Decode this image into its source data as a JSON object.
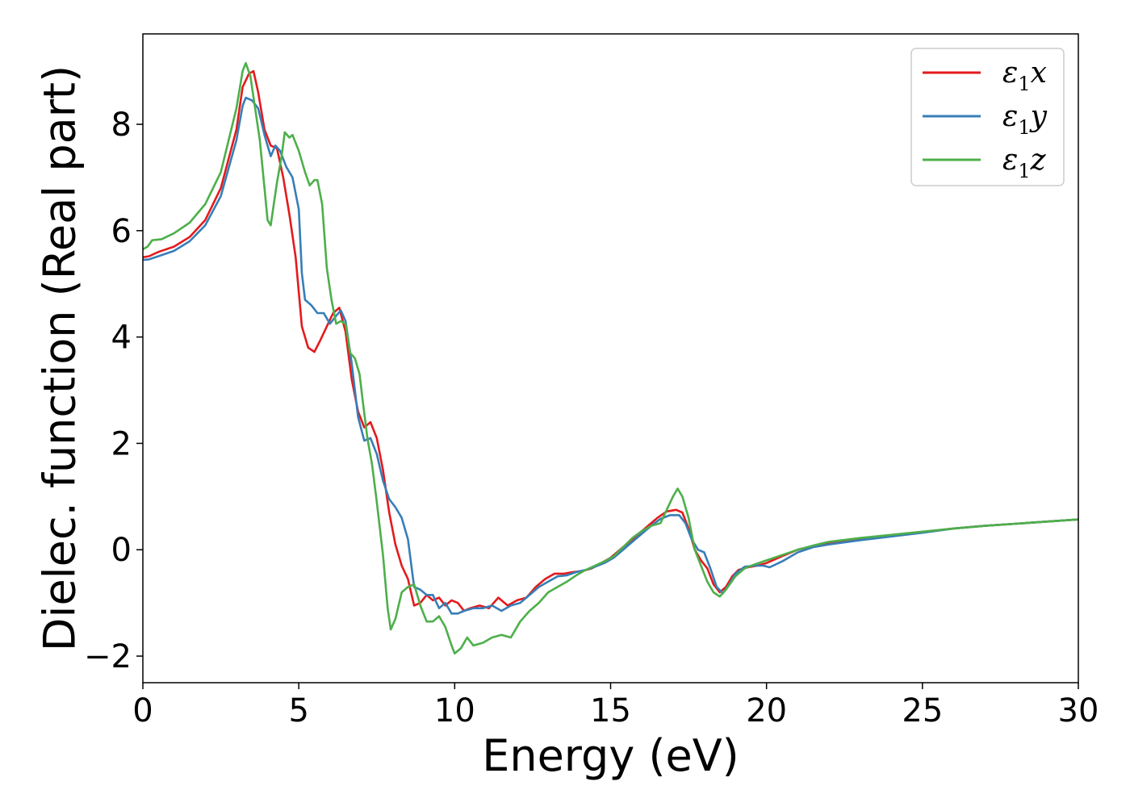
{
  "chart_data": {
    "type": "line",
    "xlabel": "Energy (eV)",
    "ylabel": "Dielec. function (Real part)",
    "xlim": [
      0,
      30
    ],
    "ylim": [
      -2.5,
      9.7
    ],
    "xticks": [
      0,
      5,
      10,
      15,
      20,
      25,
      30
    ],
    "xtick_labels": [
      "0",
      "5",
      "10",
      "15",
      "20",
      "25",
      "30"
    ],
    "yticks": [
      -2,
      0,
      2,
      4,
      6,
      8
    ],
    "ytick_labels": [
      "−2",
      "0",
      "2",
      "4",
      "6",
      "8"
    ],
    "grid": false,
    "legend_position": "top-right",
    "series": [
      {
        "name": "ε1x",
        "legend_base": "ε",
        "legend_sub": "1",
        "legend_tail": "x",
        "color": "#e41a1c",
        "points": [
          [
            0,
            5.5
          ],
          [
            0.2,
            5.52
          ],
          [
            0.5,
            5.6
          ],
          [
            1,
            5.7
          ],
          [
            1.5,
            5.88
          ],
          [
            2,
            6.2
          ],
          [
            2.5,
            6.8
          ],
          [
            3,
            7.9
          ],
          [
            3.2,
            8.7
          ],
          [
            3.4,
            8.95
          ],
          [
            3.55,
            9.0
          ],
          [
            3.7,
            8.6
          ],
          [
            3.9,
            7.9
          ],
          [
            4.1,
            7.6
          ],
          [
            4.3,
            7.55
          ],
          [
            4.5,
            7.0
          ],
          [
            4.7,
            6.3
          ],
          [
            4.9,
            5.5
          ],
          [
            5.1,
            4.2
          ],
          [
            5.3,
            3.8
          ],
          [
            5.5,
            3.72
          ],
          [
            5.7,
            3.95
          ],
          [
            5.9,
            4.2
          ],
          [
            6.1,
            4.45
          ],
          [
            6.3,
            4.55
          ],
          [
            6.5,
            4.1
          ],
          [
            6.7,
            3.2
          ],
          [
            6.9,
            2.6
          ],
          [
            7.1,
            2.3
          ],
          [
            7.3,
            2.4
          ],
          [
            7.5,
            2.1
          ],
          [
            7.7,
            1.5
          ],
          [
            7.9,
            0.7
          ],
          [
            8.1,
            0.1
          ],
          [
            8.3,
            -0.3
          ],
          [
            8.5,
            -0.55
          ],
          [
            8.7,
            -1.05
          ],
          [
            8.9,
            -1.0
          ],
          [
            9.1,
            -0.85
          ],
          [
            9.3,
            -0.95
          ],
          [
            9.5,
            -0.9
          ],
          [
            9.7,
            -1.05
          ],
          [
            9.9,
            -0.95
          ],
          [
            10.1,
            -1.0
          ],
          [
            10.3,
            -1.15
          ],
          [
            10.5,
            -1.1
          ],
          [
            10.8,
            -1.05
          ],
          [
            11.1,
            -1.1
          ],
          [
            11.4,
            -0.9
          ],
          [
            11.7,
            -1.05
          ],
          [
            12,
            -0.95
          ],
          [
            12.3,
            -0.9
          ],
          [
            12.6,
            -0.7
          ],
          [
            12.9,
            -0.55
          ],
          [
            13.2,
            -0.45
          ],
          [
            13.5,
            -0.45
          ],
          [
            13.8,
            -0.42
          ],
          [
            14.1,
            -0.4
          ],
          [
            14.4,
            -0.35
          ],
          [
            14.7,
            -0.25
          ],
          [
            15,
            -0.15
          ],
          [
            15.3,
            0.0
          ],
          [
            15.6,
            0.15
          ],
          [
            15.9,
            0.3
          ],
          [
            16.2,
            0.45
          ],
          [
            16.5,
            0.6
          ],
          [
            16.8,
            0.72
          ],
          [
            17.1,
            0.75
          ],
          [
            17.3,
            0.7
          ],
          [
            17.5,
            0.4
          ],
          [
            17.7,
            0.0
          ],
          [
            17.9,
            -0.2
          ],
          [
            18.1,
            -0.35
          ],
          [
            18.3,
            -0.65
          ],
          [
            18.5,
            -0.8
          ],
          [
            18.7,
            -0.7
          ],
          [
            18.9,
            -0.5
          ],
          [
            19.1,
            -0.38
          ],
          [
            19.4,
            -0.33
          ],
          [
            19.7,
            -0.3
          ],
          [
            20,
            -0.25
          ],
          [
            20.5,
            -0.12
          ],
          [
            21,
            0.0
          ],
          [
            21.5,
            0.07
          ],
          [
            22,
            0.12
          ],
          [
            23,
            0.2
          ],
          [
            24,
            0.27
          ],
          [
            25,
            0.33
          ],
          [
            26,
            0.4
          ],
          [
            27,
            0.45
          ],
          [
            28,
            0.49
          ],
          [
            29,
            0.53
          ],
          [
            30,
            0.57
          ]
        ]
      },
      {
        "name": "ε1y",
        "legend_base": "ε",
        "legend_sub": "1",
        "legend_tail": "y",
        "color": "#377eb8",
        "points": [
          [
            0,
            5.45
          ],
          [
            0.2,
            5.46
          ],
          [
            0.5,
            5.52
          ],
          [
            1,
            5.62
          ],
          [
            1.5,
            5.8
          ],
          [
            2,
            6.1
          ],
          [
            2.5,
            6.65
          ],
          [
            3,
            7.7
          ],
          [
            3.2,
            8.35
          ],
          [
            3.3,
            8.5
          ],
          [
            3.5,
            8.45
          ],
          [
            3.7,
            8.3
          ],
          [
            3.9,
            7.8
          ],
          [
            4.1,
            7.4
          ],
          [
            4.25,
            7.6
          ],
          [
            4.4,
            7.5
          ],
          [
            4.6,
            7.2
          ],
          [
            4.8,
            7.0
          ],
          [
            5,
            6.4
          ],
          [
            5.1,
            5.2
          ],
          [
            5.2,
            4.7
          ],
          [
            5.4,
            4.6
          ],
          [
            5.6,
            4.45
          ],
          [
            5.8,
            4.45
          ],
          [
            6.0,
            4.25
          ],
          [
            6.2,
            4.4
          ],
          [
            6.35,
            4.5
          ],
          [
            6.5,
            4.3
          ],
          [
            6.7,
            3.5
          ],
          [
            6.9,
            2.5
          ],
          [
            7.1,
            2.05
          ],
          [
            7.3,
            2.1
          ],
          [
            7.5,
            1.8
          ],
          [
            7.7,
            1.3
          ],
          [
            7.9,
            0.95
          ],
          [
            8.1,
            0.8
          ],
          [
            8.3,
            0.6
          ],
          [
            8.5,
            0.2
          ],
          [
            8.7,
            -0.7
          ],
          [
            8.9,
            -0.75
          ],
          [
            9.1,
            -0.85
          ],
          [
            9.3,
            -0.85
          ],
          [
            9.5,
            -1.1
          ],
          [
            9.7,
            -1.0
          ],
          [
            9.9,
            -1.2
          ],
          [
            10.1,
            -1.2
          ],
          [
            10.3,
            -1.15
          ],
          [
            10.6,
            -1.1
          ],
          [
            10.9,
            -1.1
          ],
          [
            11.2,
            -1.05
          ],
          [
            11.5,
            -1.15
          ],
          [
            11.8,
            -1.05
          ],
          [
            12.1,
            -1.0
          ],
          [
            12.4,
            -0.85
          ],
          [
            12.7,
            -0.7
          ],
          [
            13,
            -0.6
          ],
          [
            13.3,
            -0.5
          ],
          [
            13.6,
            -0.48
          ],
          [
            13.9,
            -0.42
          ],
          [
            14.2,
            -0.38
          ],
          [
            14.5,
            -0.32
          ],
          [
            14.8,
            -0.25
          ],
          [
            15.1,
            -0.15
          ],
          [
            15.4,
            0.0
          ],
          [
            15.7,
            0.15
          ],
          [
            16,
            0.3
          ],
          [
            16.3,
            0.45
          ],
          [
            16.6,
            0.58
          ],
          [
            16.9,
            0.65
          ],
          [
            17.2,
            0.65
          ],
          [
            17.4,
            0.5
          ],
          [
            17.6,
            0.2
          ],
          [
            17.8,
            0.0
          ],
          [
            18.0,
            -0.05
          ],
          [
            18.2,
            -0.35
          ],
          [
            18.4,
            -0.7
          ],
          [
            18.6,
            -0.82
          ],
          [
            18.8,
            -0.65
          ],
          [
            19.0,
            -0.45
          ],
          [
            19.3,
            -0.32
          ],
          [
            19.6,
            -0.3
          ],
          [
            19.9,
            -0.3
          ],
          [
            20.1,
            -0.33
          ],
          [
            20.5,
            -0.22
          ],
          [
            21,
            -0.05
          ],
          [
            21.5,
            0.05
          ],
          [
            22,
            0.1
          ],
          [
            23,
            0.18
          ],
          [
            24,
            0.25
          ],
          [
            25,
            0.32
          ],
          [
            26,
            0.4
          ],
          [
            27,
            0.45
          ],
          [
            28,
            0.49
          ],
          [
            29,
            0.53
          ],
          [
            30,
            0.57
          ]
        ]
      },
      {
        "name": "ε1z",
        "legend_base": "ε",
        "legend_sub": "1",
        "legend_tail": "z",
        "color": "#4daf4a",
        "points": [
          [
            0,
            5.65
          ],
          [
            0.15,
            5.7
          ],
          [
            0.3,
            5.82
          ],
          [
            0.6,
            5.84
          ],
          [
            1,
            5.95
          ],
          [
            1.5,
            6.15
          ],
          [
            2,
            6.5
          ],
          [
            2.5,
            7.1
          ],
          [
            3,
            8.3
          ],
          [
            3.2,
            9.0
          ],
          [
            3.3,
            9.15
          ],
          [
            3.45,
            8.9
          ],
          [
            3.6,
            8.3
          ],
          [
            3.75,
            7.7
          ],
          [
            3.9,
            6.8
          ],
          [
            4.0,
            6.2
          ],
          [
            4.1,
            6.1
          ],
          [
            4.3,
            6.9
          ],
          [
            4.45,
            7.4
          ],
          [
            4.55,
            7.85
          ],
          [
            4.7,
            7.75
          ],
          [
            4.8,
            7.8
          ],
          [
            5.0,
            7.5
          ],
          [
            5.2,
            7.1
          ],
          [
            5.35,
            6.85
          ],
          [
            5.5,
            6.95
          ],
          [
            5.6,
            6.95
          ],
          [
            5.75,
            6.5
          ],
          [
            5.9,
            5.3
          ],
          [
            6.05,
            4.7
          ],
          [
            6.2,
            4.25
          ],
          [
            6.35,
            4.3
          ],
          [
            6.5,
            4.25
          ],
          [
            6.65,
            3.7
          ],
          [
            6.8,
            3.6
          ],
          [
            6.95,
            3.3
          ],
          [
            7.05,
            2.8
          ],
          [
            7.2,
            2.1
          ],
          [
            7.35,
            1.6
          ],
          [
            7.5,
            0.9
          ],
          [
            7.7,
            -0.1
          ],
          [
            7.85,
            -1.1
          ],
          [
            7.95,
            -1.5
          ],
          [
            8.1,
            -1.3
          ],
          [
            8.3,
            -0.8
          ],
          [
            8.5,
            -0.7
          ],
          [
            8.7,
            -0.65
          ],
          [
            8.9,
            -1.05
          ],
          [
            9.1,
            -1.35
          ],
          [
            9.3,
            -1.35
          ],
          [
            9.5,
            -1.25
          ],
          [
            9.7,
            -1.45
          ],
          [
            9.9,
            -1.8
          ],
          [
            10.0,
            -1.95
          ],
          [
            10.2,
            -1.85
          ],
          [
            10.4,
            -1.65
          ],
          [
            10.6,
            -1.8
          ],
          [
            10.9,
            -1.75
          ],
          [
            11.2,
            -1.65
          ],
          [
            11.5,
            -1.6
          ],
          [
            11.8,
            -1.65
          ],
          [
            12.1,
            -1.35
          ],
          [
            12.4,
            -1.15
          ],
          [
            12.7,
            -1.0
          ],
          [
            13.0,
            -0.8
          ],
          [
            13.3,
            -0.7
          ],
          [
            13.6,
            -0.6
          ],
          [
            13.9,
            -0.48
          ],
          [
            14.2,
            -0.38
          ],
          [
            14.5,
            -0.3
          ],
          [
            14.8,
            -0.22
          ],
          [
            15.1,
            -0.12
          ],
          [
            15.4,
            0.05
          ],
          [
            15.7,
            0.22
          ],
          [
            16.0,
            0.35
          ],
          [
            16.3,
            0.45
          ],
          [
            16.6,
            0.5
          ],
          [
            16.8,
            0.75
          ],
          [
            17.0,
            1.0
          ],
          [
            17.15,
            1.15
          ],
          [
            17.3,
            1.0
          ],
          [
            17.5,
            0.6
          ],
          [
            17.7,
            0.0
          ],
          [
            17.9,
            -0.3
          ],
          [
            18.1,
            -0.6
          ],
          [
            18.3,
            -0.8
          ],
          [
            18.5,
            -0.88
          ],
          [
            18.7,
            -0.75
          ],
          [
            19.0,
            -0.5
          ],
          [
            19.3,
            -0.35
          ],
          [
            19.6,
            -0.28
          ],
          [
            20,
            -0.2
          ],
          [
            20.5,
            -0.1
          ],
          [
            21,
            0.0
          ],
          [
            21.5,
            0.08
          ],
          [
            22,
            0.15
          ],
          [
            23,
            0.22
          ],
          [
            24,
            0.28
          ],
          [
            25,
            0.34
          ],
          [
            26,
            0.4
          ],
          [
            27,
            0.45
          ],
          [
            28,
            0.49
          ],
          [
            29,
            0.53
          ],
          [
            30,
            0.57
          ]
        ]
      }
    ]
  }
}
